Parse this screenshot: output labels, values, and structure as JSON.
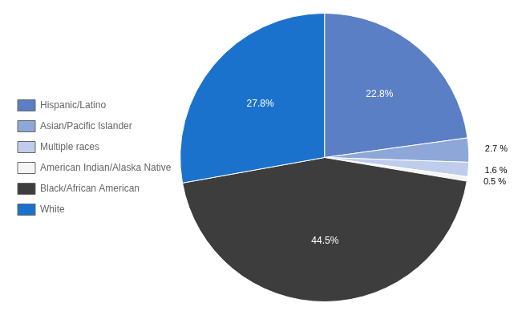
{
  "chart_data": {
    "type": "pie",
    "categories": [
      "Hispanic/Latino",
      "Asian/Pacific Islander",
      "Multiple races",
      "American Indian/Alaska Native",
      "Black/African American",
      "White"
    ],
    "values": [
      22.8,
      2.7,
      1.6,
      0.5,
      44.5,
      27.8
    ],
    "value_labels": [
      "22.8%",
      "2.7 %",
      "1.6 %",
      "0.5 %",
      "44.5%",
      "27.8%"
    ],
    "colors": [
      "#5b7fc4",
      "#8da8d8",
      "#c0ccec",
      "#f5f5f5",
      "#3d3d3d",
      "#1a72cc"
    ],
    "data_labels": true,
    "legend": "left"
  }
}
